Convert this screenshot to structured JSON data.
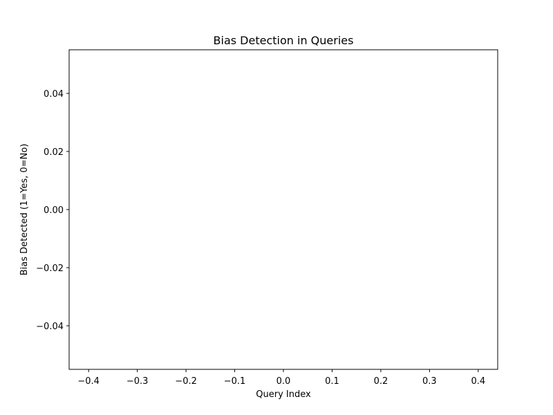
{
  "chart_data": {
    "type": "bar",
    "title": "Bias Detection in Queries",
    "xlabel": "Query Index",
    "ylabel": "Bias Detected (1=Yes, 0=No)",
    "xlim": [
      -0.44,
      0.44
    ],
    "ylim": [
      -0.055,
      0.055
    ],
    "x_ticks": [
      -0.4,
      -0.3,
      -0.2,
      -0.1,
      0.0,
      0.1,
      0.2,
      0.3,
      0.4
    ],
    "x_tick_labels": [
      "−0.4",
      "−0.3",
      "−0.2",
      "−0.1",
      "0.0",
      "0.1",
      "0.2",
      "0.3",
      "0.4"
    ],
    "y_ticks": [
      0.04,
      0.02,
      0.0,
      -0.02,
      -0.04
    ],
    "y_tick_labels": [
      "0.04",
      "0.02",
      "0.00",
      "−0.02",
      "−0.04"
    ],
    "categories": [],
    "values": [],
    "grid": false
  }
}
